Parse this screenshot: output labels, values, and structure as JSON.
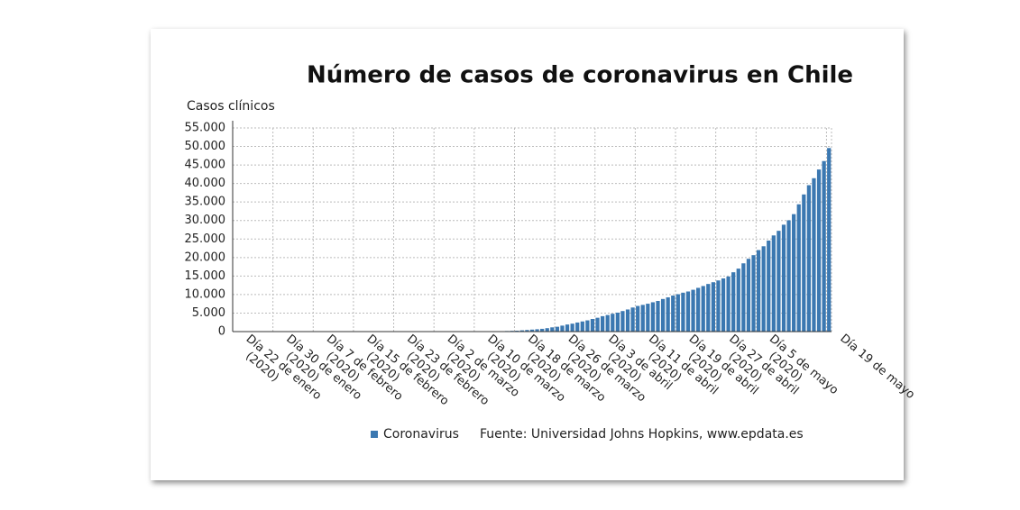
{
  "chart_data": {
    "type": "bar",
    "title": "Número de casos de coronavirus en Chile",
    "y_label": "Casos clínicos",
    "source": "Fuente: Universidad Johns Hopkins, www.epdata.es",
    "categories": [
      "Día 22 de enero (2020)",
      null,
      null,
      null,
      null,
      null,
      null,
      null,
      "Día 30 de enero (2020)",
      null,
      null,
      null,
      null,
      null,
      null,
      null,
      "Día 7 de febrero (2020)",
      null,
      null,
      null,
      null,
      null,
      null,
      null,
      "Día 15 de febrero (2020)",
      null,
      null,
      null,
      null,
      null,
      null,
      null,
      "Día 23 de febrero (2020)",
      null,
      null,
      null,
      null,
      null,
      null,
      null,
      "Día 2 de marzo (2020)",
      null,
      null,
      null,
      null,
      null,
      null,
      null,
      "Día 10 de marzo (2020)",
      null,
      null,
      null,
      null,
      null,
      null,
      null,
      "Día 18 de marzo (2020)",
      null,
      null,
      null,
      null,
      null,
      null,
      null,
      "Día 26 de marzo (2020)",
      null,
      null,
      null,
      null,
      null,
      null,
      null,
      "Día 3 de abril (2020)",
      null,
      null,
      null,
      null,
      null,
      null,
      null,
      "Día 11 de abril (2020)",
      null,
      null,
      null,
      null,
      null,
      null,
      null,
      "Día 19 de abril (2020)",
      null,
      null,
      null,
      null,
      null,
      null,
      null,
      "Día 27 de abril (2020)",
      null,
      null,
      null,
      null,
      null,
      null,
      null,
      "Día 5 de mayo (2020)",
      null,
      null,
      null,
      null,
      null,
      null,
      null,
      null,
      null,
      null,
      null,
      null,
      null,
      "Día 19 de mayo"
    ],
    "series": [
      {
        "name": "Coronavirus",
        "color": "#3b78b1",
        "values": [
          0,
          0,
          0,
          0,
          0,
          0,
          0,
          0,
          0,
          0,
          0,
          0,
          0,
          0,
          0,
          0,
          0,
          0,
          0,
          0,
          0,
          0,
          0,
          0,
          0,
          0,
          0,
          0,
          0,
          0,
          0,
          0,
          0,
          0,
          0,
          0,
          0,
          0,
          0,
          0,
          0,
          1,
          1,
          4,
          4,
          7,
          10,
          13,
          17,
          23,
          33,
          43,
          61,
          75,
          156,
          201,
          238,
          342,
          434,
          537,
          632,
          746,
          922,
          1142,
          1306,
          1610,
          1909,
          2139,
          2449,
          2738,
          3031,
          3404,
          3737,
          4161,
          4471,
          4815,
          5116,
          5546,
          5972,
          6501,
          6927,
          7213,
          7525,
          7917,
          8273,
          8807,
          9252,
          9730,
          10088,
          10507,
          10832,
          11296,
          11812,
          12306,
          12858,
          13331,
          13813,
          14365,
          14885,
          16023,
          17008,
          18435,
          19663,
          20643,
          22016,
          23048,
          24581,
          25972,
          27219,
          28866,
          30063,
          31721,
          34381,
          37040,
          39542,
          41428,
          43781,
          46059,
          49579
        ]
      }
    ],
    "ylim": [
      0,
      55000
    ],
    "yticks": [
      0,
      {
        "value": 5000,
        "label": "5.000"
      },
      {
        "value": 10000,
        "label": "10.000"
      },
      {
        "value": 15000,
        "label": "15.000"
      },
      {
        "value": 20000,
        "label": "20.000"
      },
      {
        "value": 25000,
        "label": "25.000"
      },
      {
        "value": 30000,
        "label": "30.000"
      },
      {
        "value": 35000,
        "label": "35.000"
      },
      {
        "value": 40000,
        "label": "40.000"
      },
      {
        "value": 45000,
        "label": "45.000"
      },
      {
        "value": 50000,
        "label": "50.000"
      },
      {
        "value": 55000,
        "label": "55.000"
      }
    ],
    "grid": true
  }
}
